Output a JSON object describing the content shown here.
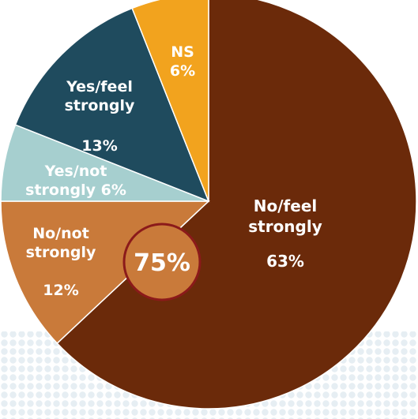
{
  "chart_data": {
    "type": "pie",
    "slices": [
      {
        "label_lines": [
          "No/feel",
          "strongly"
        ],
        "value_label": "63%",
        "value": 63,
        "color": "#6b2a0a"
      },
      {
        "label_lines": [
          "No/not",
          "strongly"
        ],
        "value_label": "12%",
        "value": 12,
        "color": "#c97a3a"
      },
      {
        "label_lines": [
          "Yes/not",
          "strongly  6%"
        ],
        "value_label": "",
        "value": 6,
        "color": "#a6cfcf"
      },
      {
        "label_lines": [
          "Yes/feel",
          "strongly"
        ],
        "value_label": "13%",
        "value": 13,
        "color": "#1f4b5e"
      },
      {
        "label_lines": [
          "NS"
        ],
        "value_label": "6%",
        "value": 6,
        "color": "#f2a31e"
      }
    ],
    "highlight": {
      "text": "75%",
      "fill": "#c97a3a",
      "stroke": "#8b1a1a"
    },
    "background_pattern_color": "#e6eef3"
  }
}
